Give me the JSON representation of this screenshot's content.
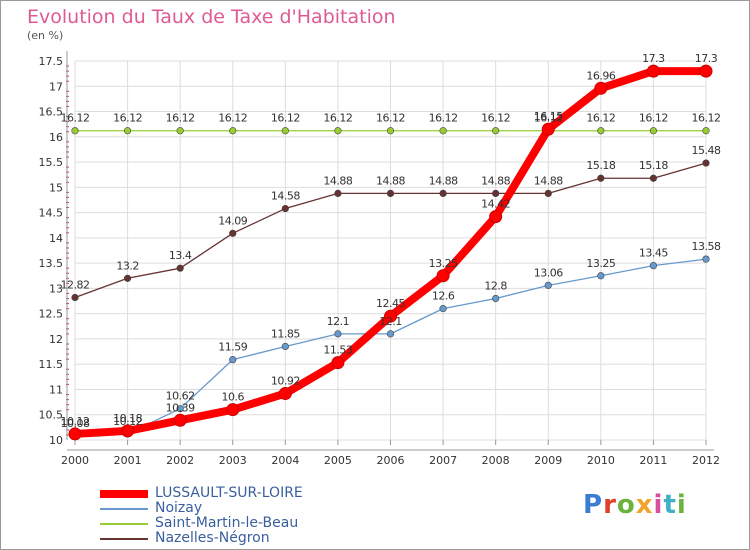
{
  "title": "Evolution du Taux de Taxe d'Habitation",
  "subtitle": "(en %)",
  "logo_text": "Proxiti",
  "colors": {
    "title": "#e05a92",
    "lussault": "#ff0000",
    "noizay": "#6699cc",
    "saint_martin": "#99cc33",
    "nazelles": "#663333",
    "grid": "#dddddd",
    "frame": "#999999"
  },
  "chart_data": {
    "type": "line",
    "title": "Evolution du Taux de Taxe d'Habitation",
    "ylabel": "(en %)",
    "xlabel": "",
    "x": [
      "2000",
      "2001",
      "2002",
      "2003",
      "2004",
      "2005",
      "2006",
      "2007",
      "2008",
      "2009",
      "2010",
      "2011",
      "2012"
    ],
    "ylim": [
      10,
      17.5
    ],
    "yticks": [
      "10",
      "10.5",
      "11",
      "11.5",
      "12",
      "12.5",
      "13",
      "13.5",
      "14",
      "14.5",
      "15",
      "15.5",
      "16",
      "16.5",
      "17",
      "17.5"
    ],
    "grid": true,
    "legend_position": "bottom-left",
    "series": [
      {
        "name": "LUSSAULT-SUR-LOIRE",
        "color": "#ff0000",
        "values": [
          10.12,
          10.18,
          10.39,
          10.6,
          10.92,
          11.53,
          12.45,
          13.25,
          14.42,
          16.15,
          16.96,
          17.3,
          17.3
        ],
        "labels": [
          "10.12",
          "10.18",
          "10.39",
          "10.6",
          "10.92",
          "11.53",
          "12.45",
          "13.25",
          "14.42",
          "16.15",
          "16.96",
          "17.3",
          "17.3"
        ]
      },
      {
        "name": "Noizay",
        "color": "#6699cc",
        "values": [
          10.08,
          10.12,
          10.62,
          11.59,
          11.85,
          12.1,
          12.1,
          12.6,
          12.8,
          13.06,
          13.25,
          13.45,
          13.58
        ],
        "labels": [
          "10.08",
          "10.12",
          "10.62",
          "11.59",
          "11.85",
          "12.1",
          "12.1",
          "12.6",
          "12.8",
          "13.06",
          "13.25",
          "13.45",
          "13.58"
        ]
      },
      {
        "name": "Saint-Martin-le-Beau",
        "color": "#99cc33",
        "values": [
          16.12,
          16.12,
          16.12,
          16.12,
          16.12,
          16.12,
          16.12,
          16.12,
          16.12,
          16.12,
          16.12,
          16.12,
          16.12
        ],
        "labels": [
          "16.12",
          "16.12",
          "16.12",
          "16.12",
          "16.12",
          "16.12",
          "16.12",
          "16.12",
          "16.12",
          "16.12",
          "16.12",
          "16.12",
          "16.12"
        ]
      },
      {
        "name": "Nazelles-Négron",
        "color": "#663333",
        "values": [
          12.82,
          13.2,
          13.4,
          14.09,
          14.58,
          14.88,
          14.88,
          14.88,
          14.88,
          14.88,
          15.18,
          15.18,
          15.48
        ],
        "labels": [
          "12.82",
          "13.2",
          "13.4",
          "14.09",
          "14.58",
          "14.88",
          "14.88",
          "14.88",
          "14.88",
          "14.88",
          "15.18",
          "15.18",
          "15.48"
        ]
      }
    ]
  }
}
